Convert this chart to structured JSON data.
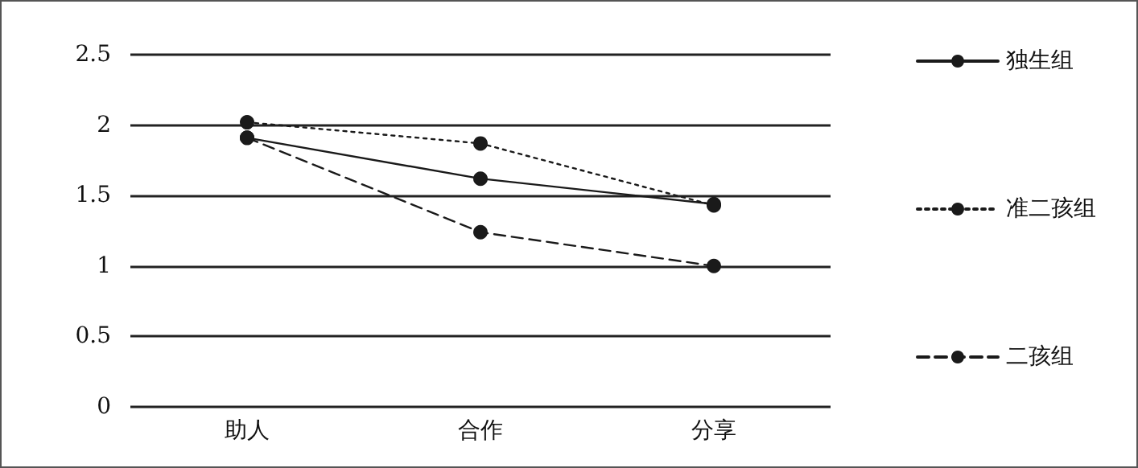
{
  "chart_data": {
    "type": "line",
    "categories": [
      "助人",
      "合作",
      "分享"
    ],
    "series": [
      {
        "name": "独生组",
        "color": "#1a1a1a",
        "line_style": "solid",
        "values": [
          1.91,
          1.62,
          1.44
        ]
      },
      {
        "name": "准二孩组",
        "color": "#1a1a1a",
        "line_style": "dotted",
        "values": [
          2.02,
          1.87,
          1.43
        ]
      },
      {
        "name": "二孩组",
        "color": "#1a1a1a",
        "line_style": "dashed",
        "values": [
          1.91,
          1.24,
          1.0
        ]
      }
    ],
    "ylim": [
      0,
      2.5
    ],
    "yticks": [
      0,
      0.5,
      1,
      1.5,
      2,
      2.5
    ],
    "grid": "y",
    "legend": "right",
    "marker": "circle"
  }
}
